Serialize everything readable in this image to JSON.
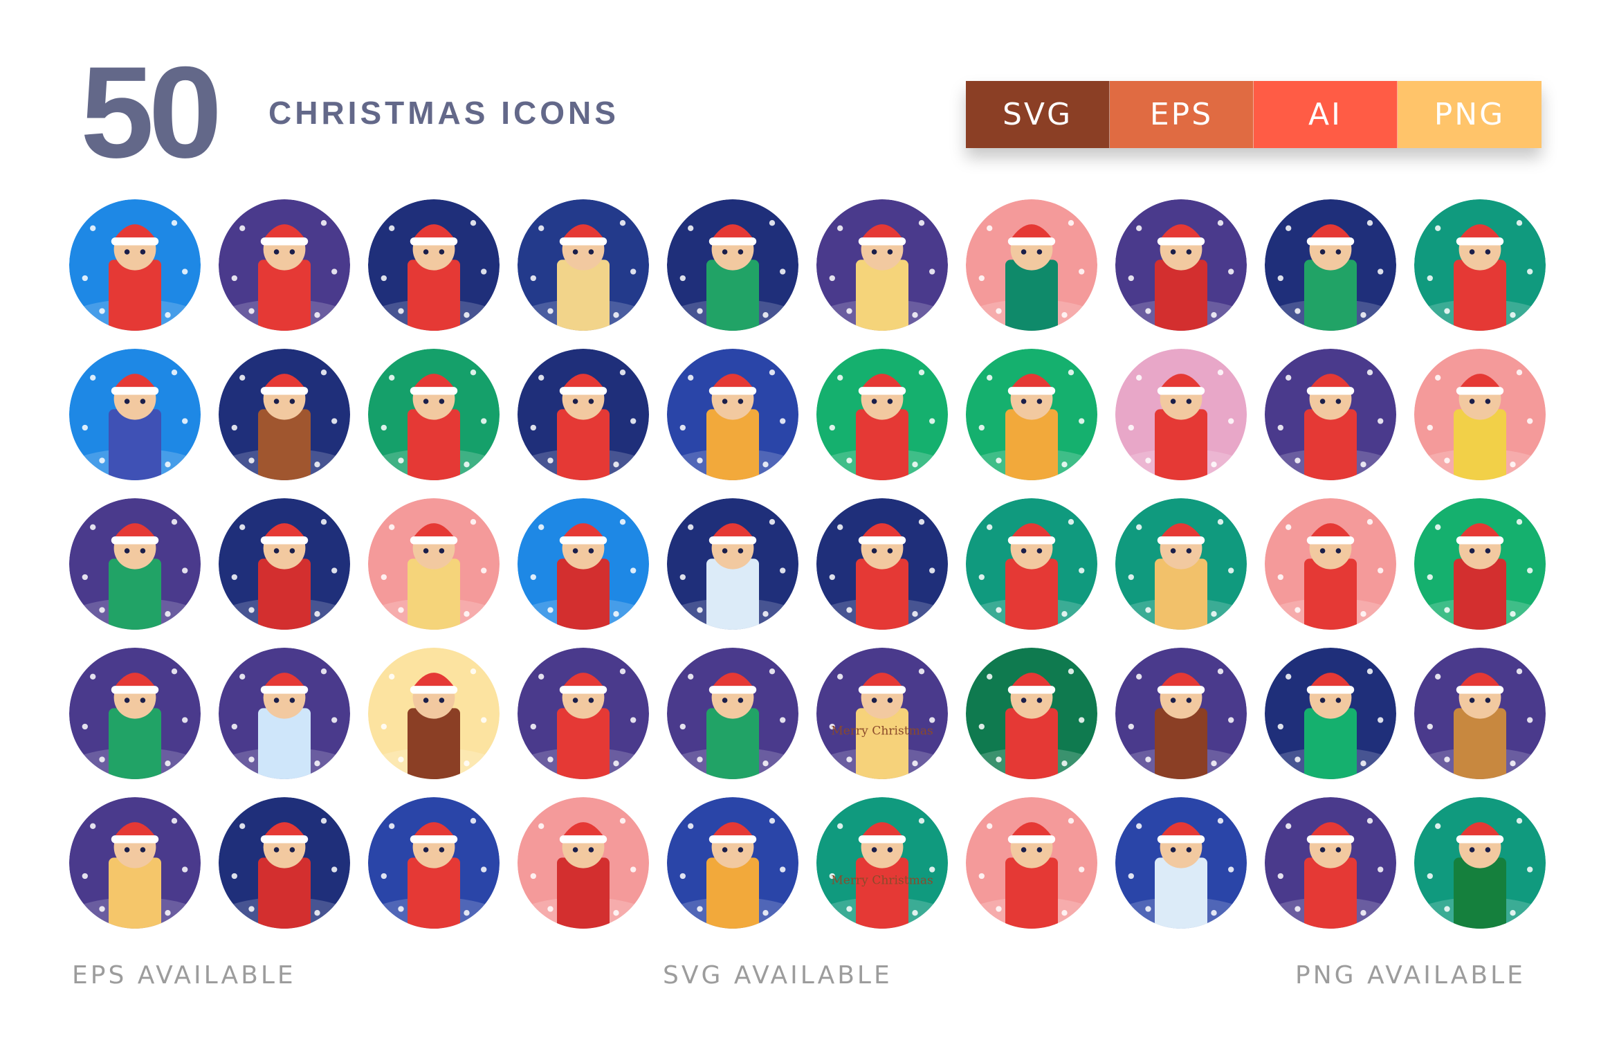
{
  "header": {
    "count": "50",
    "title": "CHRISTMAS ICONS",
    "text_color": "#636889"
  },
  "formats": [
    {
      "label": "SVG",
      "color": "#8B3F25"
    },
    {
      "label": "EPS",
      "color": "#E06B42"
    },
    {
      "label": "AI",
      "color": "#FF5C45"
    },
    {
      "label": "PNG",
      "color": "#FFC46A"
    }
  ],
  "icons": [
    {
      "name": "reindeer-girl",
      "bg": "#1E88E5",
      "accent": "#E53935"
    },
    {
      "name": "carolers",
      "bg": "#4A3A8C",
      "accent": "#E53935"
    },
    {
      "name": "santa-lantern",
      "bg": "#1F2F7A",
      "accent": "#E53935"
    },
    {
      "name": "candles-holly",
      "bg": "#233A8B",
      "accent": "#F2D48A"
    },
    {
      "name": "christmas-tree",
      "bg": "#1F2F7A",
      "accent": "#21A366"
    },
    {
      "name": "angel",
      "bg": "#4A3A8C",
      "accent": "#F5D47A"
    },
    {
      "name": "girl-with-tree",
      "bg": "#F49A9A",
      "accent": "#0F8A6A"
    },
    {
      "name": "couple-mistletoe",
      "bg": "#4A3A8C",
      "accent": "#D32F2F"
    },
    {
      "name": "elf-snow",
      "bg": "#1F2F7A",
      "accent": "#21A366"
    },
    {
      "name": "santa-sack",
      "bg": "#109A7E",
      "accent": "#E53935"
    },
    {
      "name": "gift-mittens",
      "bg": "#1E88E5",
      "accent": "#3F51B5"
    },
    {
      "name": "log-cabin",
      "bg": "#1F2F7A",
      "accent": "#A0562F"
    },
    {
      "name": "bauble",
      "bg": "#15A06A",
      "accent": "#E53935"
    },
    {
      "name": "santa-gift-bag",
      "bg": "#1F2F7A",
      "accent": "#E53935"
    },
    {
      "name": "boy-snowball",
      "bg": "#2A45A8",
      "accent": "#F2A93B"
    },
    {
      "name": "calendar-25",
      "bg": "#15B06E",
      "accent": "#E53935"
    },
    {
      "name": "greeting-letter",
      "bg": "#15B06E",
      "accent": "#F2A93B"
    },
    {
      "name": "christmas-card",
      "bg": "#E8A7C8",
      "accent": "#E53935"
    },
    {
      "name": "candy-cane",
      "bg": "#4A3A8C",
      "accent": "#E53935"
    },
    {
      "name": "bell-holly",
      "bg": "#F49A9A",
      "accent": "#F2D048"
    },
    {
      "name": "wreath",
      "bg": "#4A3A8C",
      "accent": "#21A366"
    },
    {
      "name": "singing-girl",
      "bg": "#1F2F7A",
      "accent": "#D32F2F"
    },
    {
      "name": "nativity",
      "bg": "#F49A9A",
      "accent": "#F5D47A"
    },
    {
      "name": "family",
      "bg": "#1E88E5",
      "accent": "#D32F2F"
    },
    {
      "name": "snowman-broom",
      "bg": "#1F2F7A",
      "accent": "#DCEBF8"
    },
    {
      "name": "advent-candles",
      "bg": "#1F2F7A",
      "accent": "#E53935"
    },
    {
      "name": "shopping-bag",
      "bg": "#109A7E",
      "accent": "#E53935"
    },
    {
      "name": "gift-stack",
      "bg": "#109A7E",
      "accent": "#F2C16A"
    },
    {
      "name": "hot-cocoa",
      "bg": "#F49A9A",
      "accent": "#E53935"
    },
    {
      "name": "hat-mittens",
      "bg": "#15B06E",
      "accent": "#D32F2F"
    },
    {
      "name": "elf-gifts",
      "bg": "#4A3A8C",
      "accent": "#21A366"
    },
    {
      "name": "snow-globe",
      "bg": "#4A3A8C",
      "accent": "#CFE6FA"
    },
    {
      "name": "fireplace",
      "bg": "#FCE3A0",
      "accent": "#8B3F25"
    },
    {
      "name": "nutcracker",
      "bg": "#4A3A8C",
      "accent": "#E53935"
    },
    {
      "name": "boy-decorating-tree",
      "bg": "#4A3A8C",
      "accent": "#21A366"
    },
    {
      "name": "merry-christmas-scroll",
      "bg": "#4A3A8C",
      "accent": "#F6D27A",
      "text": "Merry Christmas"
    },
    {
      "name": "stocking",
      "bg": "#0F7A4F",
      "accent": "#E53935"
    },
    {
      "name": "chimney",
      "bg": "#4A3A8C",
      "accent": "#8B3F25"
    },
    {
      "name": "snowy-tree",
      "bg": "#1F2F7A",
      "accent": "#15B06E"
    },
    {
      "name": "gingerbread-man",
      "bg": "#4A3A8C",
      "accent": "#C8883F"
    },
    {
      "name": "jingle-bells",
      "bg": "#4A3A8C",
      "accent": "#F5C66A"
    },
    {
      "name": "santa-portrait",
      "bg": "#1F2F7A",
      "accent": "#D32F2F"
    },
    {
      "name": "girl-winter",
      "bg": "#2A45A8",
      "accent": "#E53935"
    },
    {
      "name": "hamper",
      "bg": "#F49A9A",
      "accent": "#D32F2F"
    },
    {
      "name": "boy-mittens",
      "bg": "#2A45A8",
      "accent": "#F2A93B"
    },
    {
      "name": "family-card-envelope",
      "bg": "#109A7E",
      "accent": "#E53935",
      "text": "Merry Christmas"
    },
    {
      "name": "gift-holly",
      "bg": "#F49A9A",
      "accent": "#E53935"
    },
    {
      "name": "snowman-bowtie",
      "bg": "#2A45A8",
      "accent": "#DCEBF8"
    },
    {
      "name": "lollipop",
      "bg": "#4A3A8C",
      "accent": "#E53935"
    },
    {
      "name": "reindeer-mittens",
      "bg": "#109A7E",
      "accent": "#15803D"
    }
  ],
  "footer": {
    "left": "EPS AVAILABLE",
    "center": "SVG AVAILABLE",
    "right": "PNG AVAILABLE"
  }
}
